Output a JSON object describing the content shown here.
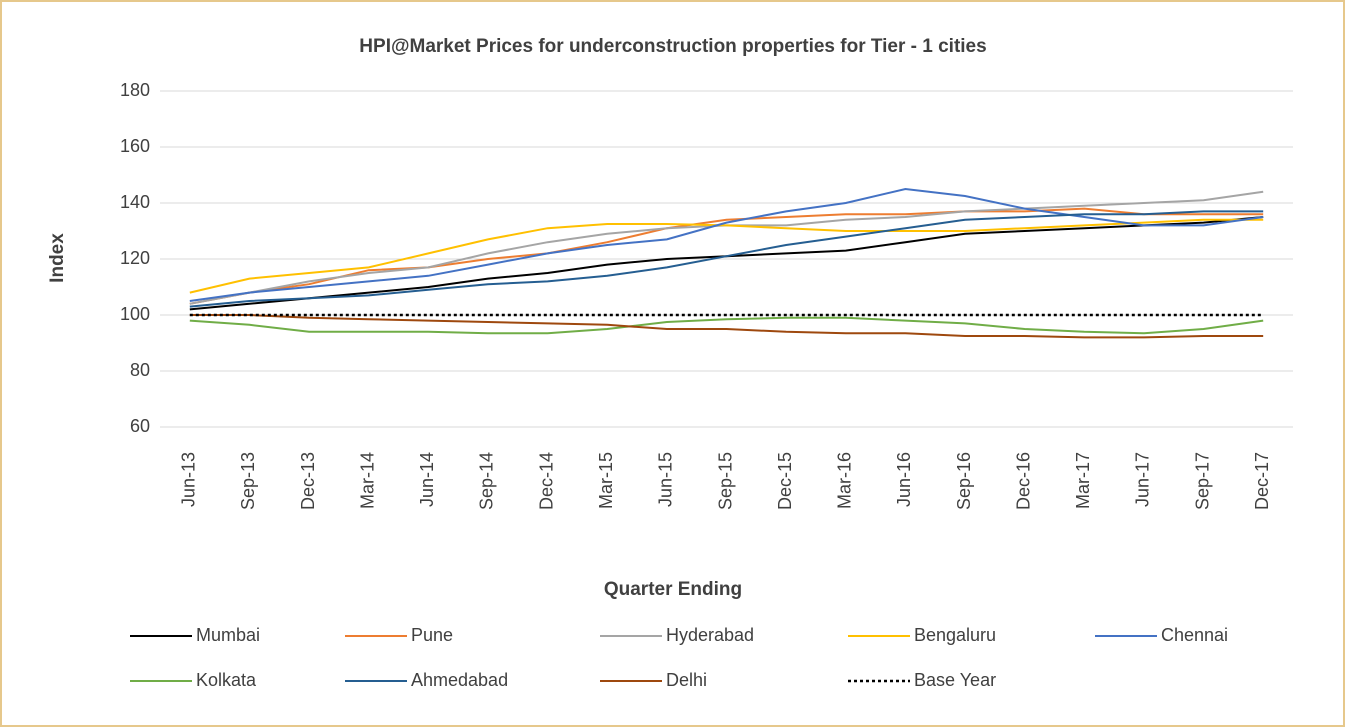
{
  "chart_data": {
    "type": "line",
    "title": "HPI@Market Prices for underconstruction properties for Tier - 1 cities",
    "x_label": "Quarter Ending",
    "y_label": "Index",
    "categories": [
      "Jun-13",
      "Sep-13",
      "Dec-13",
      "Mar-14",
      "Jun-14",
      "Sep-14",
      "Dec-14",
      "Mar-15",
      "Jun-15",
      "Sep-15",
      "Dec-15",
      "Mar-16",
      "Jun-16",
      "Sep-16",
      "Dec-16",
      "Mar-17",
      "Jun-17",
      "Sep-17",
      "Dec-17"
    ],
    "ylim": [
      60,
      180
    ],
    "yticks": [
      60,
      80,
      100,
      120,
      140,
      160,
      180
    ],
    "grid": true,
    "series": [
      {
        "name": "Mumbai",
        "color": "#000000",
        "values": [
          102,
          104,
          106,
          108,
          110,
          113,
          115,
          118,
          120,
          121,
          122,
          123,
          126,
          129,
          130,
          131,
          132,
          133,
          135
        ]
      },
      {
        "name": "Pune",
        "color": "#ed7d31",
        "values": [
          104,
          108,
          111,
          116,
          117,
          120,
          122,
          126,
          131,
          134,
          135,
          136,
          136,
          137,
          137,
          138,
          136,
          136,
          136
        ]
      },
      {
        "name": "Hyderabad",
        "color": "#a5a5a5",
        "values": [
          104,
          108,
          112,
          115,
          117,
          122,
          126,
          129,
          131,
          132,
          132,
          134,
          135,
          137,
          138,
          139,
          140,
          141,
          144
        ]
      },
      {
        "name": "Bengaluru",
        "color": "#ffc000",
        "values": [
          108,
          113,
          115,
          117,
          122,
          127,
          131,
          132.5,
          132.5,
          132,
          131,
          130,
          130,
          130,
          131,
          132,
          133,
          134,
          134
        ]
      },
      {
        "name": "Chennai",
        "color": "#4472c4",
        "values": [
          105,
          108,
          110,
          112,
          114,
          118,
          122,
          125,
          127,
          133,
          137,
          140,
          145,
          142.5,
          138,
          135,
          132,
          132,
          135
        ]
      },
      {
        "name": "Kolkata",
        "color": "#70ad47",
        "values": [
          98,
          96.5,
          94,
          94,
          94,
          93.5,
          93.5,
          95,
          97.5,
          98.5,
          99,
          99,
          98,
          97,
          95,
          94,
          93.5,
          95,
          98
        ]
      },
      {
        "name": "Ahmedabad",
        "color": "#255e91",
        "values": [
          103,
          105,
          106,
          107,
          109,
          111,
          112,
          114,
          117,
          121,
          125,
          128,
          131,
          134,
          135,
          136,
          136,
          137,
          137
        ]
      },
      {
        "name": "Delhi",
        "color": "#9e480e",
        "values": [
          100,
          100,
          99,
          98.5,
          98,
          97.5,
          97,
          96.5,
          95,
          95,
          94,
          93.5,
          93.5,
          92.5,
          92.5,
          92,
          92,
          92.5,
          92.5
        ]
      },
      {
        "name": "Base Year",
        "color": "#000000",
        "dashed": true,
        "values": [
          100,
          100,
          100,
          100,
          100,
          100,
          100,
          100,
          100,
          100,
          100,
          100,
          100,
          100,
          100,
          100,
          100,
          100,
          100
        ]
      }
    ]
  }
}
